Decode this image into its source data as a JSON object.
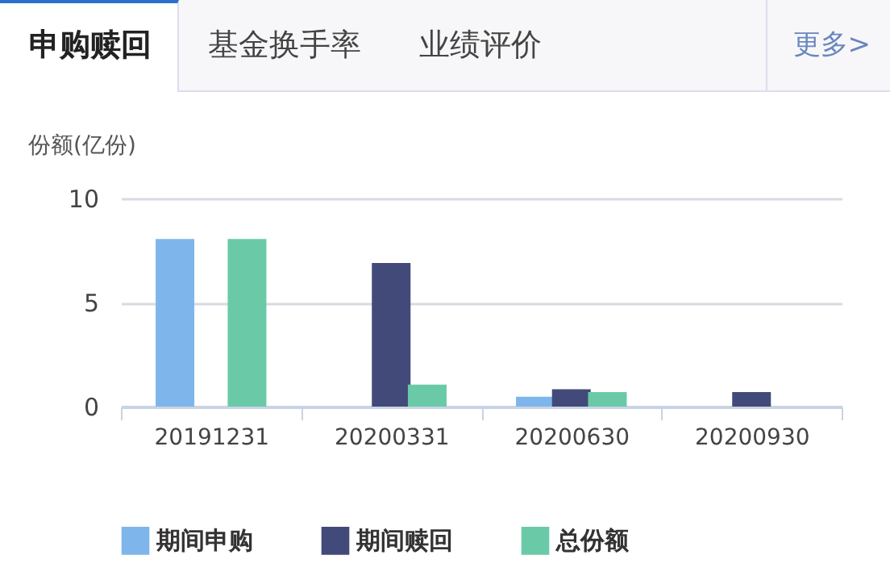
{
  "chart_data": {
    "type": "bar",
    "annotations": [
      "申购赎回",
      "基金换手率",
      "业绩评价",
      "更多>"
    ],
    "ylabel": "份额(亿份)",
    "categories": [
      "20191231",
      "20200331",
      "20200630",
      "20200930"
    ],
    "series": [
      {
        "name": "期间申购",
        "color": "#7eb6ec",
        "values": [
          8.05,
          null,
          0.47,
          null
        ]
      },
      {
        "name": "期间赎回",
        "color": "#424a7a",
        "values": [
          null,
          6.9,
          0.83,
          0.7
        ]
      },
      {
        "name": "总份额",
        "color": "#6acaa8",
        "values": [
          8.05,
          1.06,
          0.7,
          null
        ]
      }
    ],
    "ylim": [
      0,
      10
    ],
    "yticks": [
      0,
      5,
      10
    ],
    "grid": "y",
    "legend": "bottom"
  }
}
